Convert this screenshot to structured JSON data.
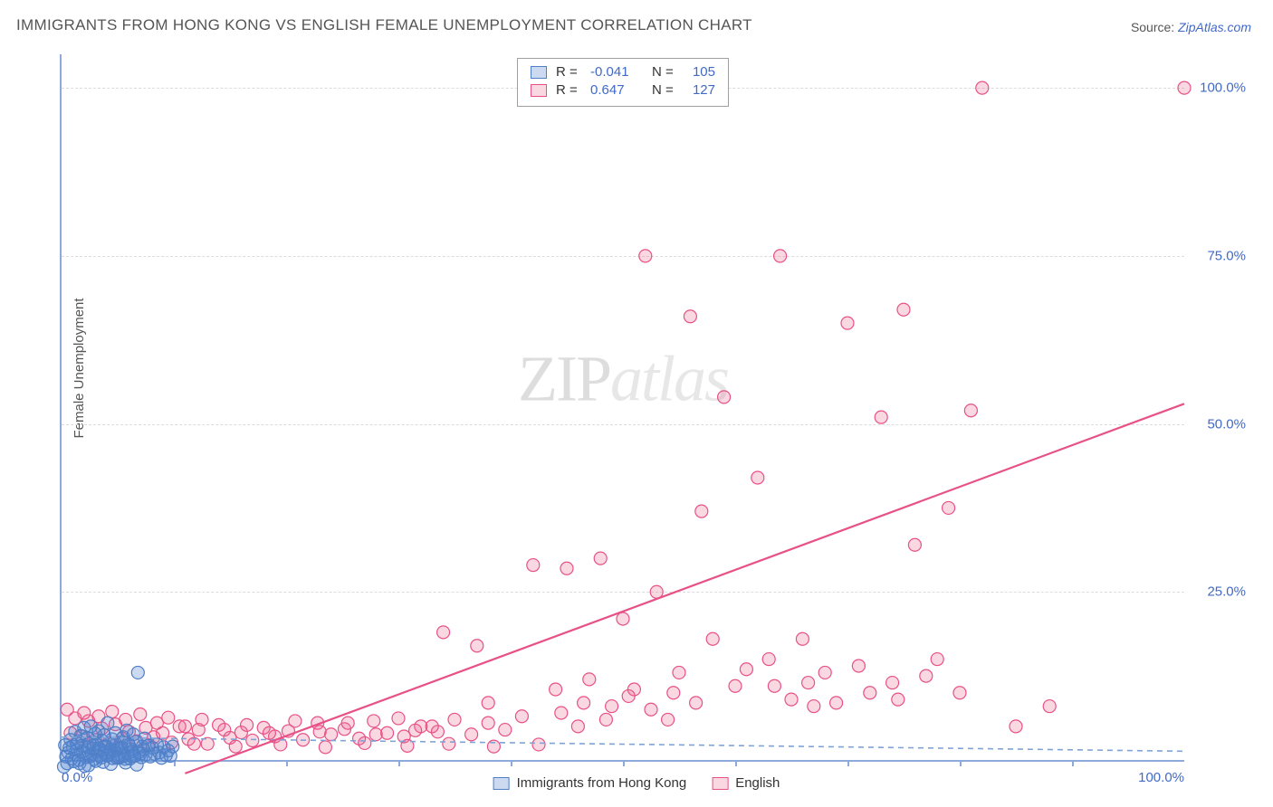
{
  "title": "IMMIGRANTS FROM HONG KONG VS ENGLISH FEMALE UNEMPLOYMENT CORRELATION CHART",
  "source_prefix": "Source: ",
  "source_link": "ZipAtlas.com",
  "watermark_a": "ZIP",
  "watermark_b": "atlas",
  "y_axis_label": "Female Unemployment",
  "chart": {
    "type": "scatter",
    "background_color": "#ffffff",
    "axis_color": "#8dabda",
    "grid_color": "#dcdcdc",
    "tick_label_color": "#4169c8",
    "xlim": [
      0,
      100
    ],
    "ylim": [
      0,
      105
    ],
    "y_ticks": [
      {
        "v": 25,
        "label": "25.0%"
      },
      {
        "v": 50,
        "label": "50.0%"
      },
      {
        "v": 75,
        "label": "75.0%"
      },
      {
        "v": 100,
        "label": "100.0%"
      }
    ],
    "x_ticks_minor": [
      10,
      20,
      30,
      40,
      50,
      60,
      70,
      80,
      90
    ],
    "x_labels": [
      {
        "v": 0,
        "label": "0.0%",
        "cls": "first"
      },
      {
        "v": 100,
        "label": "100.0%",
        "cls": "last"
      }
    ],
    "marker_radius": 7,
    "marker_stroke_width": 1.2,
    "series": [
      {
        "key": "hk",
        "name": "Immigrants from Hong Kong",
        "fill": "rgba(82,131,210,0.30)",
        "stroke": "#4f7fc6",
        "R_label": "R = ",
        "R": "-0.041",
        "N_label": "N = ",
        "N": "105",
        "trend": {
          "dash": "6,5",
          "color": "#7fa3d6",
          "width": 1.6,
          "x1": 0,
          "y1": 3.4,
          "x2": 100,
          "y2": 1.3
        },
        "points": [
          [
            0.3,
            2.2
          ],
          [
            0.6,
            1.1
          ],
          [
            0.8,
            3.0
          ],
          [
            1.0,
            2.0
          ],
          [
            1.2,
            4.2
          ],
          [
            1.4,
            1.5
          ],
          [
            1.5,
            2.8
          ],
          [
            1.7,
            3.6
          ],
          [
            1.8,
            2.1
          ],
          [
            2.0,
            4.8
          ],
          [
            2.1,
            1.0
          ],
          [
            2.3,
            3.3
          ],
          [
            2.5,
            2.5
          ],
          [
            2.6,
            5.0
          ],
          [
            2.8,
            1.7
          ],
          [
            3.0,
            3.9
          ],
          [
            3.1,
            2.3
          ],
          [
            3.3,
            4.3
          ],
          [
            3.5,
            1.4
          ],
          [
            3.6,
            2.9
          ],
          [
            3.8,
            3.7
          ],
          [
            4.0,
            2.0
          ],
          [
            4.1,
            5.5
          ],
          [
            4.3,
            1.2
          ],
          [
            4.5,
            3.1
          ],
          [
            4.6,
            2.4
          ],
          [
            4.8,
            4.0
          ],
          [
            5.0,
            1.8
          ],
          [
            5.1,
            0.3
          ],
          [
            5.3,
            2.6
          ],
          [
            5.5,
            3.4
          ],
          [
            5.6,
            0.6
          ],
          [
            5.8,
            4.4
          ],
          [
            6.0,
            2.2
          ],
          [
            6.2,
            1.6
          ],
          [
            6.4,
            3.8
          ],
          [
            6.6,
            2.7
          ],
          [
            6.8,
            13.0
          ],
          [
            7.0,
            0.9
          ],
          [
            7.2,
            2.0
          ],
          [
            7.4,
            3.2
          ],
          [
            0.4,
            0.5
          ],
          [
            0.9,
            0.2
          ],
          [
            1.3,
            0.8
          ],
          [
            1.6,
            -0.5
          ],
          [
            1.9,
            1.3
          ],
          [
            2.2,
            0.4
          ],
          [
            2.4,
            -0.8
          ],
          [
            2.7,
            0.9
          ],
          [
            2.9,
            0.1
          ],
          [
            3.2,
            1.5
          ],
          [
            3.4,
            0.6
          ],
          [
            3.7,
            -0.3
          ],
          [
            3.9,
            1.1
          ],
          [
            4.2,
            0.7
          ],
          [
            4.4,
            -0.6
          ],
          [
            4.7,
            1.4
          ],
          [
            4.9,
            0.3
          ],
          [
            5.2,
            1.7
          ],
          [
            5.4,
            0.5
          ],
          [
            5.7,
            -0.4
          ],
          [
            5.9,
            1.0
          ],
          [
            6.1,
            0.2
          ],
          [
            6.3,
            1.3
          ],
          [
            6.5,
            0.6
          ],
          [
            6.7,
            -0.7
          ],
          [
            6.9,
            1.2
          ],
          [
            7.1,
            0.4
          ],
          [
            7.3,
            1.6
          ],
          [
            7.5,
            0.8
          ],
          [
            7.7,
            2.1
          ],
          [
            7.9,
            0.5
          ],
          [
            8.1,
            1.8
          ],
          [
            8.3,
            0.9
          ],
          [
            8.5,
            2.3
          ],
          [
            8.7,
            1.1
          ],
          [
            8.9,
            0.3
          ],
          [
            9.1,
            1.9
          ],
          [
            9.3,
            0.7
          ],
          [
            9.5,
            1.4
          ],
          [
            9.7,
            0.6
          ],
          [
            9.9,
            2.0
          ],
          [
            0.2,
            -1.0
          ],
          [
            0.5,
            -0.5
          ],
          [
            0.7,
            1.8
          ],
          [
            1.1,
            -0.2
          ],
          [
            1.35,
            2.5
          ],
          [
            1.55,
            0.0
          ],
          [
            2.05,
            -0.9
          ],
          [
            2.35,
            1.9
          ],
          [
            2.55,
            0.55
          ],
          [
            2.85,
            2.2
          ],
          [
            3.05,
            -0.15
          ],
          [
            3.35,
            1.75
          ],
          [
            3.55,
            0.35
          ],
          [
            3.85,
            2.05
          ],
          [
            4.05,
            0.65
          ],
          [
            4.35,
            1.55
          ],
          [
            4.55,
            0.25
          ],
          [
            4.85,
            2.35
          ],
          [
            5.05,
            0.45
          ],
          [
            5.35,
            1.85
          ],
          [
            5.65,
            0.15
          ],
          [
            5.95,
            2.45
          ],
          [
            6.25,
            0.55
          ]
        ]
      },
      {
        "key": "english",
        "name": "English",
        "fill": "rgba(236,100,140,0.25)",
        "stroke": "#e85187",
        "R_label": "R = ",
        "R": "0.647",
        "N_label": "N = ",
        "N": "127",
        "trend": {
          "dash": "none",
          "color": "#e85187",
          "width": 2.2,
          "x1": 11,
          "y1": -2,
          "x2": 100,
          "y2": 53
        },
        "points": [
          [
            0.5,
            7.5
          ],
          [
            0.8,
            4.0
          ],
          [
            1.2,
            6.2
          ],
          [
            1.8,
            3.5
          ],
          [
            2.4,
            5.8
          ],
          [
            3.0,
            3.0
          ],
          [
            3.6,
            4.7
          ],
          [
            4.2,
            2.5
          ],
          [
            4.8,
            5.3
          ],
          [
            5.4,
            3.2
          ],
          [
            6.0,
            4.2
          ],
          [
            6.7,
            2.8
          ],
          [
            7.5,
            4.8
          ],
          [
            8.2,
            3.4
          ],
          [
            9.0,
            4.0
          ],
          [
            9.8,
            2.6
          ],
          [
            10.5,
            5.0
          ],
          [
            11.3,
            3.1
          ],
          [
            12.2,
            4.5
          ],
          [
            13.0,
            2.4
          ],
          [
            14.0,
            5.2
          ],
          [
            15.0,
            3.3
          ],
          [
            16.0,
            4.1
          ],
          [
            17.0,
            2.9
          ],
          [
            18.0,
            4.8
          ],
          [
            19.0,
            3.5
          ],
          [
            20.2,
            4.3
          ],
          [
            21.5,
            3.0
          ],
          [
            22.8,
            5.5
          ],
          [
            24.0,
            3.8
          ],
          [
            25.2,
            4.6
          ],
          [
            26.5,
            3.2
          ],
          [
            27.8,
            5.8
          ],
          [
            29.0,
            4.0
          ],
          [
            30.5,
            3.5
          ],
          [
            32.0,
            5.0
          ],
          [
            33.5,
            4.2
          ],
          [
            35.0,
            6.0
          ],
          [
            36.5,
            3.8
          ],
          [
            38.0,
            5.5
          ],
          [
            39.5,
            4.5
          ],
          [
            41.0,
            6.5
          ],
          [
            34.0,
            19.0
          ],
          [
            37.0,
            17.0
          ],
          [
            38.0,
            8.5
          ],
          [
            42.0,
            29.0
          ],
          [
            44.0,
            10.5
          ],
          [
            45.0,
            28.5
          ],
          [
            46.0,
            5.0
          ],
          [
            47.0,
            12.0
          ],
          [
            48.0,
            30.0
          ],
          [
            49.0,
            8.0
          ],
          [
            50.0,
            21.0
          ],
          [
            51.0,
            10.5
          ],
          [
            52.0,
            75.0
          ],
          [
            53.0,
            25.0
          ],
          [
            54.0,
            6.0
          ],
          [
            55.0,
            13.0
          ],
          [
            56.0,
            66.0
          ],
          [
            56.5,
            8.5
          ],
          [
            57.0,
            37.0
          ],
          [
            58.0,
            18.0
          ],
          [
            59.0,
            54.0
          ],
          [
            60.0,
            11.0
          ],
          [
            61.0,
            13.5
          ],
          [
            62.0,
            42.0
          ],
          [
            63.0,
            15.0
          ],
          [
            63.5,
            11.0
          ],
          [
            64.0,
            75.0
          ],
          [
            65.0,
            9.0
          ],
          [
            66.0,
            18.0
          ],
          [
            66.5,
            11.5
          ],
          [
            67.0,
            8.0
          ],
          [
            68.0,
            13.0
          ],
          [
            69.0,
            8.5
          ],
          [
            70.0,
            65.0
          ],
          [
            71.0,
            14.0
          ],
          [
            72.0,
            10.0
          ],
          [
            73.0,
            51.0
          ],
          [
            74.0,
            11.5
          ],
          [
            74.5,
            9.0
          ],
          [
            75.0,
            67.0
          ],
          [
            76.0,
            32.0
          ],
          [
            77.0,
            12.5
          ],
          [
            78.0,
            15.0
          ],
          [
            79.0,
            37.5
          ],
          [
            80.0,
            10.0
          ],
          [
            81.0,
            52.0
          ],
          [
            82.0,
            100.0
          ],
          [
            85.0,
            5.0
          ],
          [
            88.0,
            8.0
          ],
          [
            100.0,
            100.0
          ],
          [
            2.0,
            7.0
          ],
          [
            3.3,
            6.5
          ],
          [
            4.5,
            7.2
          ],
          [
            5.7,
            6.0
          ],
          [
            7.0,
            6.8
          ],
          [
            8.5,
            5.5
          ],
          [
            9.5,
            6.3
          ],
          [
            11.0,
            5.0
          ],
          [
            12.5,
            6.0
          ],
          [
            14.5,
            4.5
          ],
          [
            16.5,
            5.2
          ],
          [
            18.5,
            4.0
          ],
          [
            20.8,
            5.8
          ],
          [
            23.0,
            4.2
          ],
          [
            25.5,
            5.5
          ],
          [
            28.0,
            3.8
          ],
          [
            30.0,
            6.2
          ],
          [
            31.5,
            4.4
          ],
          [
            33.0,
            5.0
          ],
          [
            44.5,
            7.0
          ],
          [
            46.5,
            8.5
          ],
          [
            48.5,
            6.0
          ],
          [
            50.5,
            9.5
          ],
          [
            52.5,
            7.5
          ],
          [
            54.5,
            10.0
          ],
          [
            7.8,
            2.2
          ],
          [
            11.8,
            2.4
          ],
          [
            15.5,
            2.0
          ],
          [
            19.5,
            2.3
          ],
          [
            23.5,
            1.9
          ],
          [
            27.0,
            2.5
          ],
          [
            30.8,
            2.1
          ],
          [
            34.5,
            2.4
          ],
          [
            38.5,
            2.0
          ],
          [
            42.5,
            2.3
          ]
        ]
      }
    ]
  },
  "legend_bottom": {
    "hk": "Immigrants from Hong Kong",
    "english": "English"
  }
}
